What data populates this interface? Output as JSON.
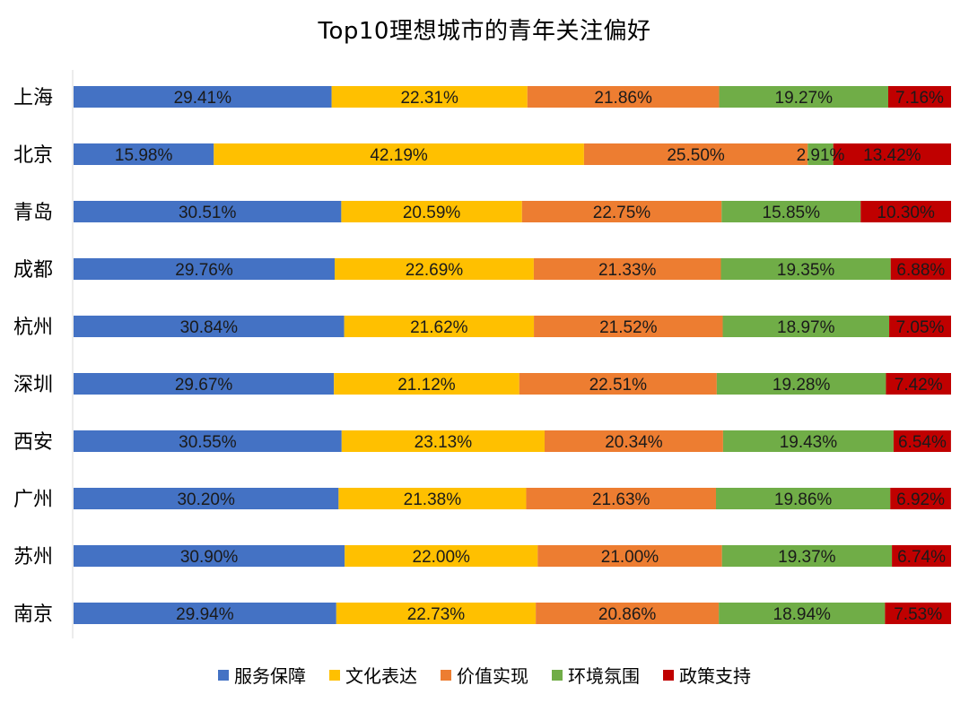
{
  "chart_data": {
    "type": "bar",
    "orientation": "horizontal",
    "stacked": true,
    "title": "Top10理想城市的青年关注偏好",
    "categories": [
      "上海",
      "北京",
      "青岛",
      "成都",
      "杭州",
      "深圳",
      "西安",
      "广州",
      "苏州",
      "南京"
    ],
    "series": [
      {
        "name": "服务保障",
        "color": "#4472C4",
        "values": [
          29.41,
          15.98,
          30.51,
          29.76,
          30.84,
          29.67,
          30.55,
          30.2,
          30.9,
          29.94
        ]
      },
      {
        "name": "文化表达",
        "color": "#FFC000",
        "values": [
          22.31,
          42.19,
          20.59,
          22.69,
          21.62,
          21.12,
          23.13,
          21.38,
          22.0,
          22.73
        ]
      },
      {
        "name": "价值实现",
        "color": "#ED7D31",
        "values": [
          21.86,
          25.5,
          22.75,
          21.33,
          21.52,
          22.51,
          20.34,
          21.63,
          21.0,
          20.86
        ]
      },
      {
        "name": "环境氛围",
        "color": "#70AD47",
        "values": [
          19.27,
          2.91,
          15.85,
          19.35,
          18.97,
          19.28,
          19.43,
          19.86,
          19.37,
          18.94
        ]
      },
      {
        "name": "政策支持",
        "color": "#C00000",
        "values": [
          7.16,
          13.42,
          10.3,
          6.88,
          7.05,
          7.42,
          6.54,
          6.92,
          6.74,
          7.53
        ]
      }
    ],
    "value_format": "percent",
    "xlim": [
      0,
      100
    ],
    "grid": false,
    "legend_position": "bottom"
  }
}
